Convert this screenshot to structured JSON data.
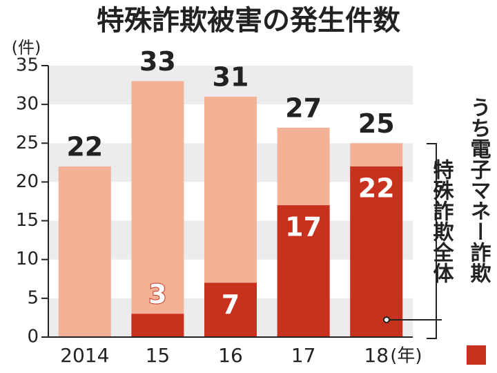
{
  "chart_data": {
    "type": "bar",
    "title": "特殊詐欺被害の発生件数",
    "y_unit": "(件)",
    "x_unit": "(年)",
    "categories": [
      "2014",
      "15",
      "16",
      "17",
      "18"
    ],
    "series": [
      {
        "name": "特殊詐欺全体",
        "color": "#f3b196",
        "values": [
          22,
          33,
          31,
          27,
          25
        ]
      },
      {
        "name": "うち電子マネー詐欺",
        "color": "#c8311e",
        "values": [
          null,
          3,
          7,
          17,
          22
        ]
      }
    ],
    "ylim": [
      0,
      35
    ],
    "yticks": [
      0,
      5,
      10,
      15,
      20,
      25,
      30,
      35
    ],
    "grid": "bands"
  }
}
